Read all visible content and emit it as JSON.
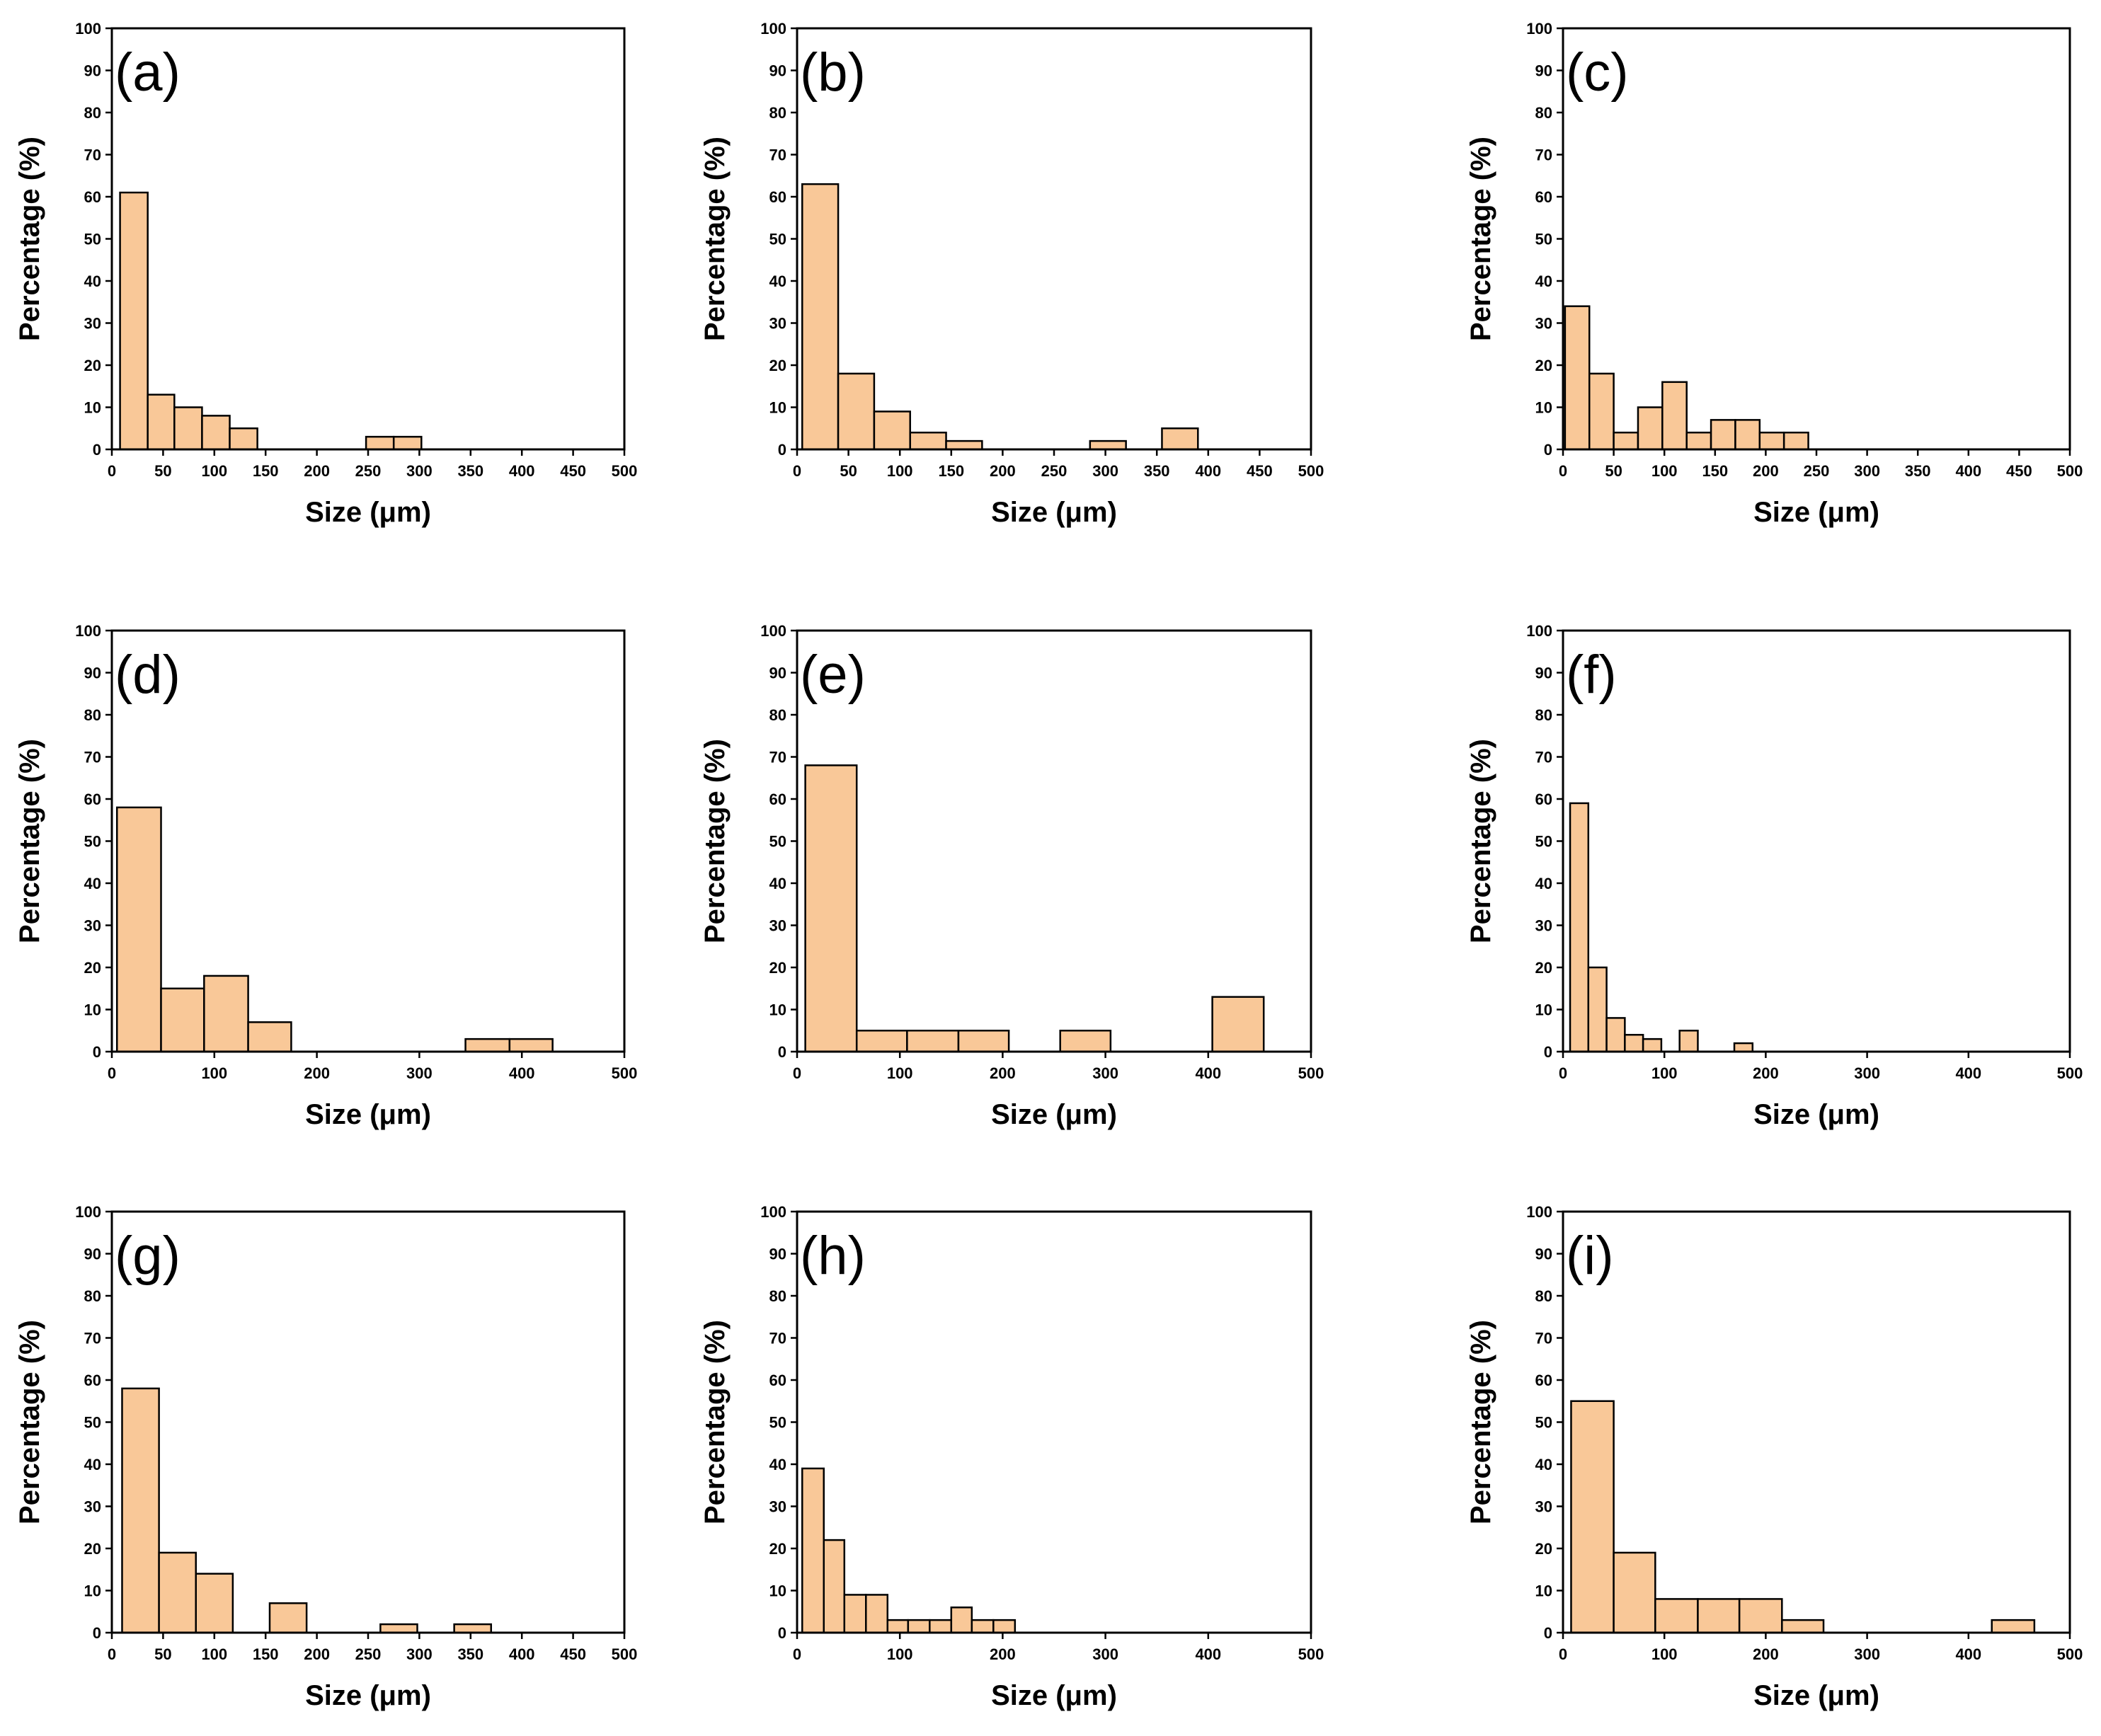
{
  "figure": {
    "bar_color": "#f9c898",
    "edge_color": "#000000"
  },
  "chart_data": [
    {
      "type": "bar",
      "panel_label": "(a)",
      "xlabel": "Size (μm)",
      "ylabel": "Percentage (%)",
      "xlim": [
        0,
        500
      ],
      "ylim": [
        0,
        100
      ],
      "xticks": [
        0,
        50,
        100,
        150,
        200,
        250,
        300,
        350,
        400,
        450,
        500
      ],
      "yticks": [
        0,
        10,
        20,
        30,
        40,
        50,
        60,
        70,
        80,
        90,
        100
      ],
      "bin_edges": [
        8,
        35,
        61,
        88,
        115,
        142,
        168,
        195,
        222,
        248,
        275,
        302
      ],
      "values": [
        61,
        13,
        10,
        8,
        5,
        0,
        0,
        0,
        0,
        3,
        3
      ]
    },
    {
      "type": "bar",
      "panel_label": "(b)",
      "xlabel": "Size (μm)",
      "ylabel": "Percentage (%)",
      "xlim": [
        0,
        500
      ],
      "ylim": [
        0,
        100
      ],
      "xticks": [
        0,
        50,
        100,
        150,
        200,
        250,
        300,
        350,
        400,
        450,
        500
      ],
      "yticks": [
        0,
        10,
        20,
        30,
        40,
        50,
        60,
        70,
        80,
        90,
        100
      ],
      "bin_edges": [
        5,
        40,
        75,
        110,
        145,
        180,
        215,
        250,
        285,
        320,
        355,
        390
      ],
      "values": [
        63,
        18,
        9,
        4,
        2,
        0,
        0,
        0,
        2,
        0,
        5
      ]
    },
    {
      "type": "bar",
      "panel_label": "(c)",
      "xlabel": "Size (μm)",
      "ylabel": "Percentage (%)",
      "xlim": [
        0,
        500
      ],
      "ylim": [
        0,
        100
      ],
      "xticks": [
        0,
        50,
        100,
        150,
        200,
        250,
        300,
        350,
        400,
        450,
        500
      ],
      "yticks": [
        0,
        10,
        20,
        30,
        40,
        50,
        60,
        70,
        80,
        90,
        100
      ],
      "bin_edges": [
        2,
        26,
        50,
        74,
        98,
        122,
        146,
        170,
        194,
        218,
        242
      ],
      "values": [
        34,
        18,
        4,
        10,
        16,
        4,
        7,
        7,
        4,
        4
      ]
    },
    {
      "type": "bar",
      "panel_label": "(d)",
      "xlabel": "Size (μm)",
      "ylabel": "Percentage (%)",
      "xlim": [
        0,
        500
      ],
      "ylim": [
        0,
        100
      ],
      "xticks": [
        0,
        100,
        200,
        300,
        400,
        500
      ],
      "yticks": [
        0,
        10,
        20,
        30,
        40,
        50,
        60,
        70,
        80,
        90,
        100
      ],
      "bin_edges": [
        5,
        48,
        90,
        133,
        175,
        218,
        260,
        303,
        345,
        388,
        430
      ],
      "values": [
        58,
        15,
        18,
        7,
        0,
        0,
        0,
        0,
        3,
        3
      ]
    },
    {
      "type": "bar",
      "panel_label": "(e)",
      "xlabel": "Size (μm)",
      "ylabel": "Percentage (%)",
      "xlim": [
        0,
        500
      ],
      "ylim": [
        0,
        100
      ],
      "xticks": [
        0,
        100,
        200,
        300,
        400,
        500
      ],
      "yticks": [
        0,
        10,
        20,
        30,
        40,
        50,
        60,
        70,
        80,
        90,
        100
      ],
      "bin_edges": [
        8,
        58,
        107,
        157,
        206,
        256,
        305,
        355,
        404,
        454
      ],
      "values": [
        68,
        5,
        5,
        5,
        0,
        5,
        0,
        0,
        13
      ]
    },
    {
      "type": "bar",
      "panel_label": "(f)",
      "xlabel": "Size (μm)",
      "ylabel": "Percentage (%)",
      "xlim": [
        0,
        500
      ],
      "ylim": [
        0,
        100
      ],
      "xticks": [
        0,
        100,
        200,
        300,
        400,
        500
      ],
      "yticks": [
        0,
        10,
        20,
        30,
        40,
        50,
        60,
        70,
        80,
        90,
        100
      ],
      "bin_edges": [
        7,
        25,
        43,
        61,
        79,
        97,
        115,
        133,
        151,
        169,
        187
      ],
      "values": [
        59,
        20,
        8,
        4,
        3,
        0,
        5,
        0,
        0,
        2
      ]
    },
    {
      "type": "bar",
      "panel_label": "(g)",
      "xlabel": "Size (μm)",
      "ylabel": "Percentage (%)",
      "xlim": [
        0,
        500
      ],
      "ylim": [
        0,
        100
      ],
      "xticks": [
        0,
        50,
        100,
        150,
        200,
        250,
        300,
        350,
        400,
        450,
        500
      ],
      "yticks": [
        0,
        10,
        20,
        30,
        40,
        50,
        60,
        70,
        80,
        90,
        100
      ],
      "bin_edges": [
        10,
        46,
        82,
        118,
        154,
        190,
        226,
        262,
        298,
        334,
        370
      ],
      "values": [
        58,
        19,
        14,
        0,
        7,
        0,
        0,
        2,
        0,
        2
      ]
    },
    {
      "type": "bar",
      "panel_label": "(h)",
      "xlabel": "Size (μm)",
      "ylabel": "Percentage (%)",
      "xlim": [
        0,
        500
      ],
      "ylim": [
        0,
        100
      ],
      "xticks": [
        0,
        100,
        200,
        300,
        400,
        500
      ],
      "yticks": [
        0,
        10,
        20,
        30,
        40,
        50,
        60,
        70,
        80,
        90,
        100
      ],
      "bin_edges": [
        5,
        26,
        46,
        67,
        88,
        108,
        129,
        150,
        170,
        191,
        212
      ],
      "values": [
        39,
        22,
        9,
        9,
        3,
        3,
        3,
        6,
        3,
        3
      ]
    },
    {
      "type": "bar",
      "panel_label": "(i)",
      "xlabel": "Size (μm)",
      "ylabel": "Percentage (%)",
      "xlim": [
        0,
        500
      ],
      "ylim": [
        0,
        100
      ],
      "xticks": [
        0,
        100,
        200,
        300,
        400,
        500
      ],
      "yticks": [
        0,
        10,
        20,
        30,
        40,
        50,
        60,
        70,
        80,
        90,
        100
      ],
      "bin_edges": [
        8,
        50,
        91,
        133,
        174,
        216,
        257,
        299,
        340,
        382,
        423,
        465
      ],
      "values": [
        55,
        19,
        8,
        8,
        8,
        3,
        0,
        0,
        0,
        0,
        3
      ]
    }
  ]
}
